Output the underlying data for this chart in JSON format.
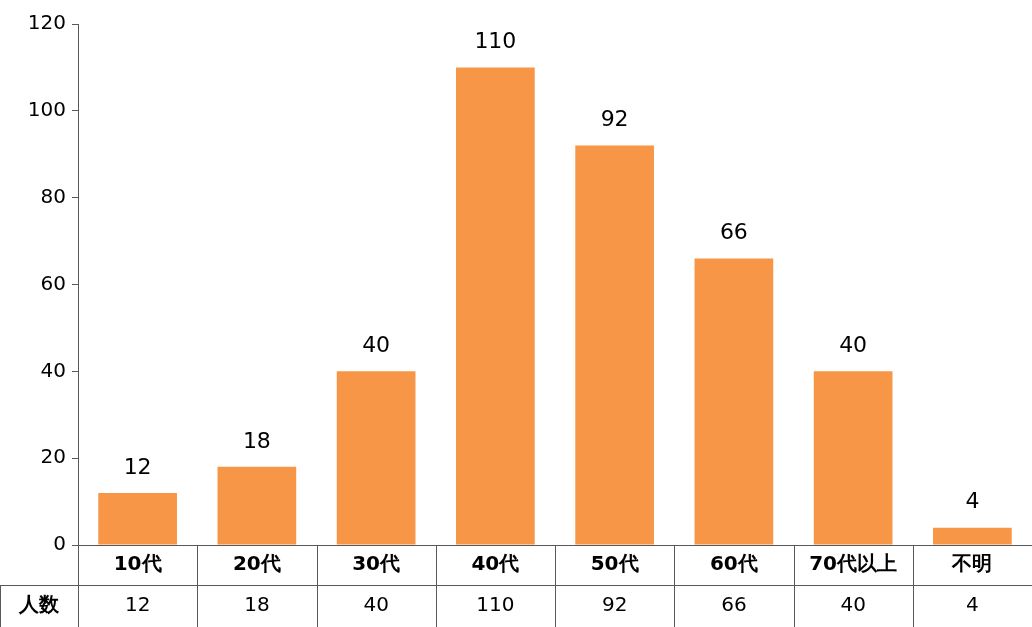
{
  "chart_data": {
    "type": "bar",
    "categories": [
      "10代",
      "20代",
      "30代",
      "40代",
      "50代",
      "60代",
      "70代以上",
      "不明"
    ],
    "series": [
      {
        "name": "人数",
        "color": "#f79646",
        "values": [
          12,
          18,
          40,
          110,
          92,
          66,
          40,
          4
        ],
        "value_labels": [
          "12",
          "18",
          "40",
          "110",
          "92",
          "66",
          "40",
          "4"
        ]
      }
    ],
    "ylim": [
      0,
      120
    ],
    "yticks": [
      0,
      20,
      40,
      60,
      80,
      100,
      120
    ],
    "grid": false,
    "legend": false,
    "annotations": [
      "12",
      "18",
      "40",
      "110",
      "92",
      "66",
      "40",
      "4"
    ]
  }
}
